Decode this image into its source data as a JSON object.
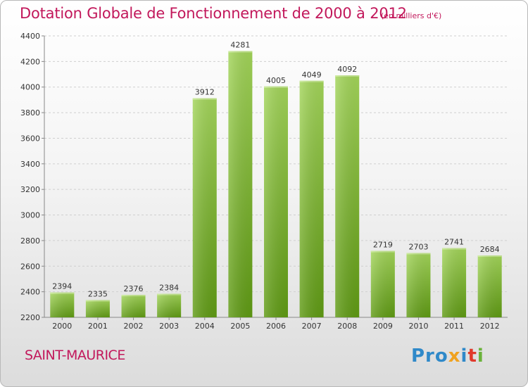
{
  "chart_data": {
    "type": "bar",
    "title": "Dotation Globale de Fonctionnement de 2000 à 2012",
    "unit_note": "(en milliers d'€)",
    "categories": [
      "2000",
      "2001",
      "2002",
      "2003",
      "2004",
      "2005",
      "2006",
      "2007",
      "2008",
      "2009",
      "2010",
      "2011",
      "2012"
    ],
    "values": [
      2394,
      2335,
      2376,
      2384,
      3912,
      4281,
      4005,
      4049,
      4092,
      2719,
      2703,
      2741,
      2684
    ],
    "ylim": [
      2200,
      4400
    ],
    "yticks": [
      2200,
      2400,
      2600,
      2800,
      3000,
      3200,
      3400,
      3600,
      3800,
      4000,
      4200,
      4400
    ],
    "grid": true,
    "bar_color": "#8cc63f"
  },
  "footer": {
    "place": "SAINT-MAURICE",
    "logo": [
      "Pro",
      "x",
      "i",
      "t",
      "i"
    ]
  }
}
